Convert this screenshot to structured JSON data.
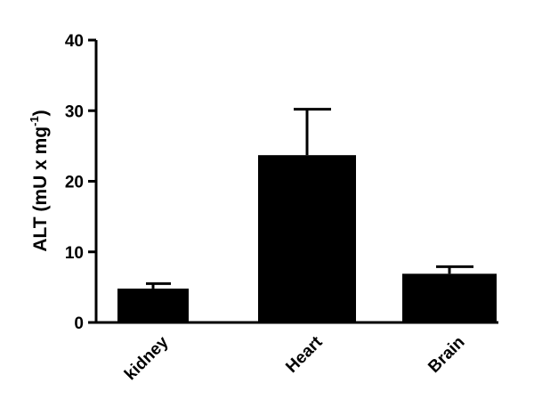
{
  "chart_data": {
    "type": "bar",
    "ylabel": [
      "ALT (mU x mg",
      "-1",
      ")"
    ],
    "categories": [
      "kidney",
      "Heart",
      "Brain"
    ],
    "values": [
      4.8,
      23.7,
      6.9
    ],
    "errors": [
      0.7,
      6.5,
      1.0
    ],
    "color": "#000000",
    "ylim": [
      0,
      40
    ],
    "yticks": [
      0,
      10,
      20,
      30,
      40
    ]
  }
}
